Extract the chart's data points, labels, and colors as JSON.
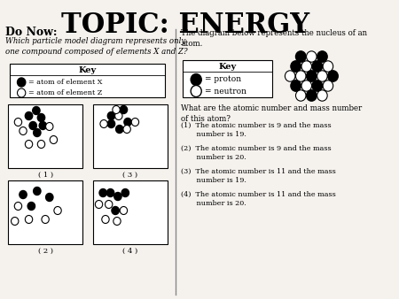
{
  "title": "TOPIC: ENERGY",
  "bg_color": "#f5f2ee",
  "left_header": "Do Now:",
  "left_question": "Which particle model diagram represents only\none compound composed of elements X and Z?",
  "right_question": "The diagram below represents the nucleus of an\natom.",
  "right_subquestion": "What are the atomic number and mass number\nof this atom?",
  "answers": [
    "(1)  The atomic number is 9 and the mass\n       number is 19.",
    "(2)  The atomic number is 9 and the mass\n       number is 20.",
    "(3)  The atomic number is 11 and the mass\n       number is 19.",
    "(4)  The atomic number is 11 and the mass\n       number is 20."
  ],
  "font_family": "serif"
}
